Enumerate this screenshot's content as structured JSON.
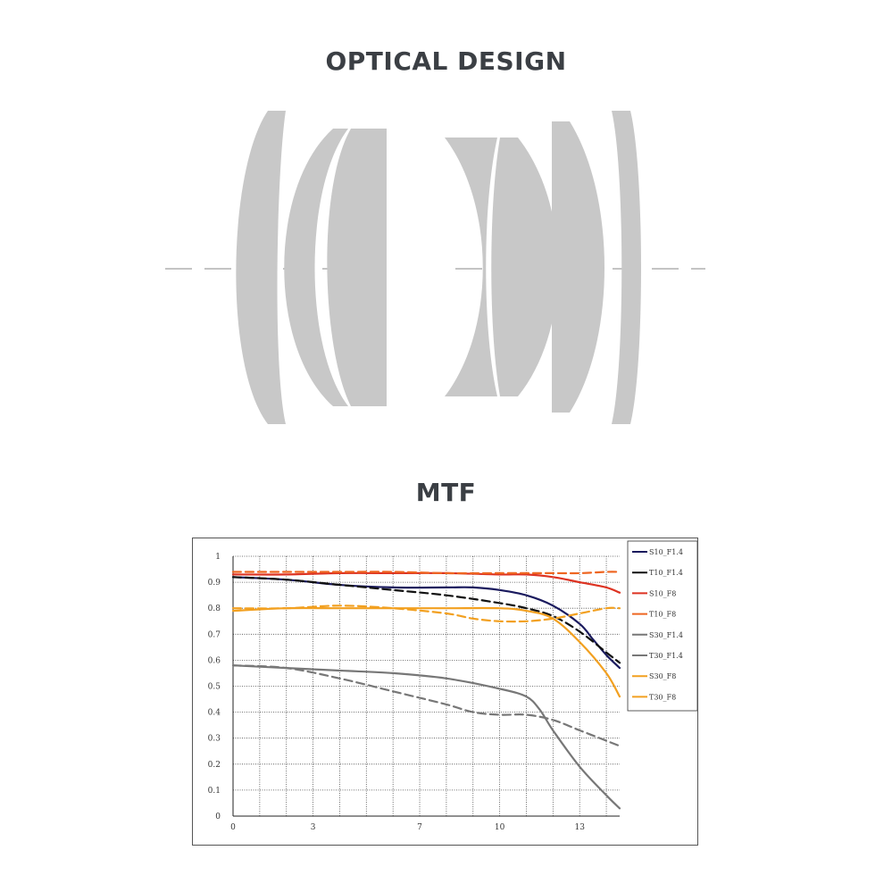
{
  "page": {
    "optical_title": "OPTICAL DESIGN",
    "mtf_title": "MTF"
  },
  "colors": {
    "lens": "#c8c8c8",
    "axis_dash": "#c4c4c4",
    "title": "#3b3f44"
  },
  "chart_data": {
    "type": "line",
    "title": "MTF",
    "xlabel": "",
    "ylabel": "",
    "xlim": [
      0,
      14.5
    ],
    "ylim": [
      0,
      1
    ],
    "x_ticks": [
      0,
      3,
      7,
      10,
      13
    ],
    "y_ticks": [
      0,
      0.1,
      0.2,
      0.3,
      0.4,
      0.5,
      0.6,
      0.7,
      0.8,
      0.9,
      1
    ],
    "grid": true,
    "legend_position": "right",
    "series": [
      {
        "name": "S10_F1.4",
        "color": "#1a1a5e",
        "dash": false,
        "points": [
          [
            0,
            0.92
          ],
          [
            2,
            0.91
          ],
          [
            4,
            0.89
          ],
          [
            6,
            0.88
          ],
          [
            8,
            0.88
          ],
          [
            9,
            0.88
          ],
          [
            10,
            0.87
          ],
          [
            11,
            0.85
          ],
          [
            12,
            0.81
          ],
          [
            13,
            0.74
          ],
          [
            13.5,
            0.68
          ],
          [
            14,
            0.62
          ],
          [
            14.5,
            0.57
          ]
        ]
      },
      {
        "name": "T10_F1.4",
        "color": "#111111",
        "dash": true,
        "points": [
          [
            0,
            0.92
          ],
          [
            2,
            0.91
          ],
          [
            4,
            0.89
          ],
          [
            6,
            0.87
          ],
          [
            8,
            0.85
          ],
          [
            10,
            0.82
          ],
          [
            11,
            0.8
          ],
          [
            12,
            0.77
          ],
          [
            13,
            0.71
          ],
          [
            14,
            0.63
          ],
          [
            14.5,
            0.59
          ]
        ]
      },
      {
        "name": "S10_F8",
        "color": "#dd3322",
        "dash": false,
        "points": [
          [
            0,
            0.93
          ],
          [
            2,
            0.93
          ],
          [
            4,
            0.935
          ],
          [
            6,
            0.935
          ],
          [
            8,
            0.935
          ],
          [
            10,
            0.93
          ],
          [
            11,
            0.93
          ],
          [
            12,
            0.92
          ],
          [
            13,
            0.9
          ],
          [
            14,
            0.88
          ],
          [
            14.5,
            0.86
          ]
        ]
      },
      {
        "name": "T10_F8",
        "color": "#ee6622",
        "dash": true,
        "points": [
          [
            0,
            0.94
          ],
          [
            2,
            0.94
          ],
          [
            4,
            0.94
          ],
          [
            6,
            0.94
          ],
          [
            8,
            0.935
          ],
          [
            10,
            0.935
          ],
          [
            12,
            0.935
          ],
          [
            13,
            0.935
          ],
          [
            14,
            0.94
          ],
          [
            14.5,
            0.94
          ]
        ]
      },
      {
        "name": "S30_F1.4",
        "color": "#777777",
        "dash": false,
        "points": [
          [
            0,
            0.58
          ],
          [
            2,
            0.57
          ],
          [
            4,
            0.56
          ],
          [
            6,
            0.55
          ],
          [
            8,
            0.53
          ],
          [
            10,
            0.49
          ],
          [
            11,
            0.46
          ],
          [
            11.5,
            0.41
          ],
          [
            12,
            0.33
          ],
          [
            13,
            0.19
          ],
          [
            14,
            0.08
          ],
          [
            14.5,
            0.03
          ]
        ]
      },
      {
        "name": "T30_F1.4",
        "color": "#777777",
        "dash": true,
        "points": [
          [
            0,
            0.58
          ],
          [
            2,
            0.57
          ],
          [
            4,
            0.53
          ],
          [
            6,
            0.48
          ],
          [
            8,
            0.43
          ],
          [
            9,
            0.4
          ],
          [
            10,
            0.39
          ],
          [
            11,
            0.39
          ],
          [
            12,
            0.37
          ],
          [
            13,
            0.33
          ],
          [
            14,
            0.29
          ],
          [
            14.5,
            0.27
          ]
        ]
      },
      {
        "name": "S30_F8",
        "color": "#f2a020",
        "dash": false,
        "points": [
          [
            0,
            0.79
          ],
          [
            2,
            0.8
          ],
          [
            4,
            0.8
          ],
          [
            6,
            0.8
          ],
          [
            8,
            0.8
          ],
          [
            10,
            0.8
          ],
          [
            11,
            0.79
          ],
          [
            12,
            0.76
          ],
          [
            13,
            0.67
          ],
          [
            14,
            0.55
          ],
          [
            14.5,
            0.46
          ]
        ]
      },
      {
        "name": "T30_F8",
        "color": "#f2a020",
        "dash": true,
        "points": [
          [
            0,
            0.8
          ],
          [
            2,
            0.8
          ],
          [
            4,
            0.81
          ],
          [
            6,
            0.8
          ],
          [
            8,
            0.78
          ],
          [
            9,
            0.76
          ],
          [
            10,
            0.75
          ],
          [
            11,
            0.75
          ],
          [
            12,
            0.76
          ],
          [
            13,
            0.78
          ],
          [
            14,
            0.8
          ],
          [
            14.5,
            0.8
          ]
        ]
      }
    ]
  }
}
